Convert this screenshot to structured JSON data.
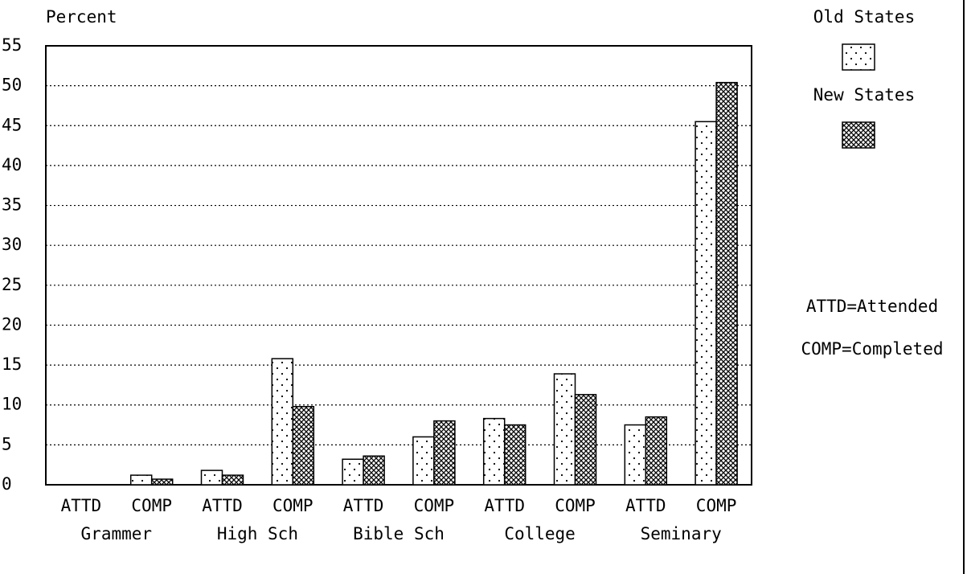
{
  "chart_data": {
    "type": "bar",
    "y_label": "Percent",
    "categories": [
      "ATTD",
      "COMP",
      "ATTD",
      "COMP",
      "ATTD",
      "COMP",
      "ATTD",
      "COMP",
      "ATTD",
      "COMP"
    ],
    "groups": [
      "Grammer",
      "High Sch",
      "Bible Sch",
      "College",
      "Seminary"
    ],
    "series": [
      {
        "name": "Old States",
        "color": "#000000",
        "pattern": "dots",
        "values": [
          0,
          1.2,
          1.8,
          15.8,
          3.2,
          6.0,
          8.3,
          13.9,
          7.5,
          45.5
        ]
      },
      {
        "name": "New States",
        "color": "#000000",
        "pattern": "crosshatch",
        "values": [
          0,
          0.7,
          1.2,
          9.8,
          3.6,
          8.0,
          7.5,
          11.3,
          8.5,
          50.4
        ]
      }
    ],
    "ylim": [
      0,
      55
    ],
    "yticks": [
      0,
      5,
      10,
      15,
      20,
      25,
      30,
      35,
      40,
      45,
      50,
      55
    ],
    "grid": true,
    "annotations": [
      "ATTD=Attended",
      "COMP=Completed"
    ]
  }
}
